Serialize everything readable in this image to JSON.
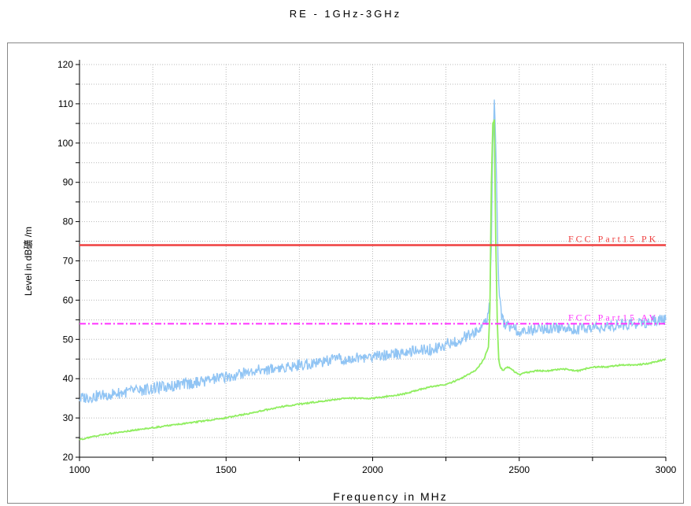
{
  "chart_data": {
    "type": "line",
    "title": "RE - 1GHz-3GHz",
    "xlabel": "Frequency in MHz",
    "ylabel": "Level in dB礦 /m",
    "xlim": [
      1000,
      3000
    ],
    "ylim": [
      20,
      120
    ],
    "x_ticks": [
      1000,
      1500,
      2000,
      2500,
      3000
    ],
    "y_ticks": [
      20,
      30,
      40,
      50,
      60,
      70,
      80,
      90,
      100,
      110,
      120
    ],
    "grid": true,
    "limit_lines": [
      {
        "label": "FCC Part15 PK",
        "value": 74,
        "color": "#ef4040",
        "style": "solid"
      },
      {
        "label": "FCC Part15 AV",
        "value": 54,
        "color": "#ff33ff",
        "style": "dashdot"
      }
    ],
    "series": [
      {
        "color": "#90c4f4",
        "x": [
          1000,
          1100,
          1200,
          1300,
          1400,
          1500,
          1600,
          1700,
          1800,
          1900,
          2000,
          2100,
          2200,
          2300,
          2350,
          2390,
          2400,
          2405,
          2410,
          2415,
          2420,
          2425,
          2430,
          2440,
          2450,
          2470,
          2500,
          2550,
          2600,
          2700,
          2800,
          2900,
          3000
        ],
        "y": [
          35,
          36,
          37,
          38,
          39,
          40.5,
          42,
          43,
          44,
          45,
          45.5,
          46.5,
          47.5,
          50,
          52,
          55,
          60,
          75,
          100,
          110,
          100,
          80,
          64,
          56,
          54,
          53,
          52,
          52.5,
          53,
          52.5,
          53.5,
          54,
          55
        ]
      },
      {
        "color": "#90ee60",
        "x": [
          1000,
          1100,
          1200,
          1300,
          1400,
          1500,
          1600,
          1700,
          1800,
          1900,
          2000,
          2100,
          2200,
          2250,
          2300,
          2350,
          2380,
          2395,
          2400,
          2405,
          2410,
          2415,
          2420,
          2425,
          2430,
          2435,
          2445,
          2460,
          2480,
          2500,
          2520,
          2560,
          2600,
          2650,
          2700,
          2750,
          2800,
          2850,
          2900,
          2950,
          3000
        ],
        "y": [
          24.5,
          26,
          27,
          28,
          29,
          30,
          31.5,
          33,
          34,
          35,
          35,
          36,
          38,
          38.5,
          40,
          42,
          45,
          48,
          58,
          90,
          105,
          106,
          75,
          55,
          45,
          43,
          42,
          43,
          42,
          41,
          41.5,
          42,
          42,
          42.5,
          42,
          43,
          43,
          43.5,
          43.5,
          44,
          45
        ]
      }
    ]
  }
}
